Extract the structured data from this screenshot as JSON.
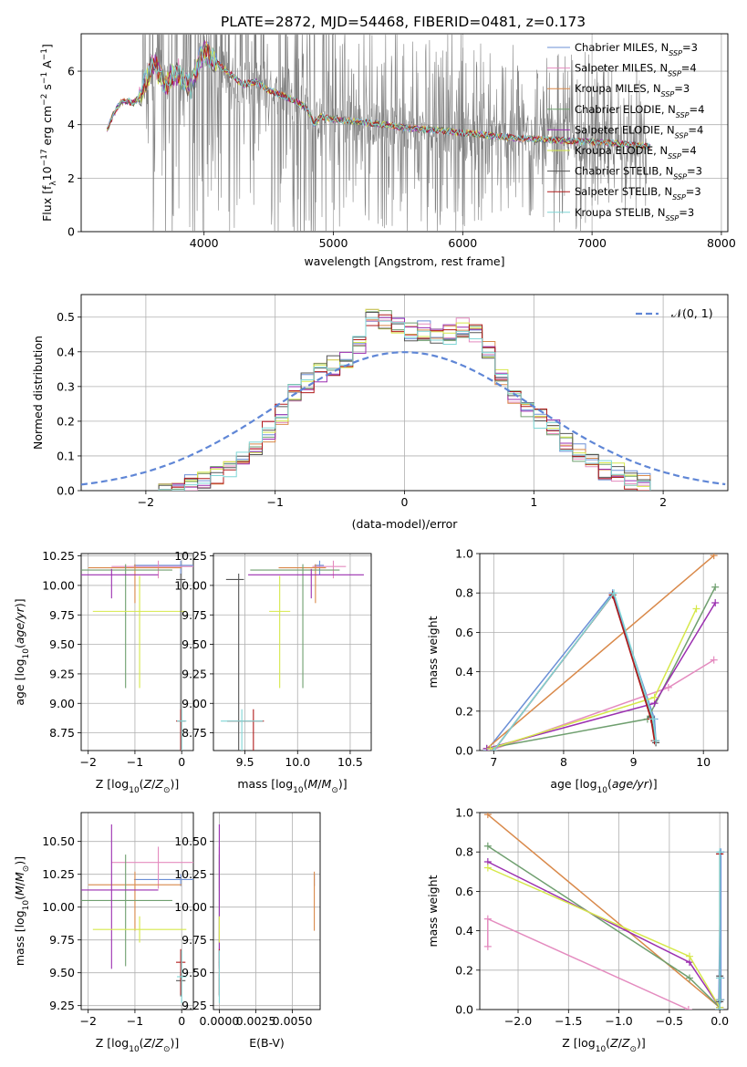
{
  "figure_title": "PLATE=2872, MJD=54468, FIBERID=0481, z=0.173",
  "colors": {
    "Chabrier MILES": "#6b8fd6",
    "Salpeter MILES": "#e48bbf",
    "Kroupa MILES": "#d9894a",
    "Chabrier ELODIE": "#6f9f6f",
    "Salpeter ELODIE": "#9b2fb0",
    "Kroupa ELODIE": "#d6e84a",
    "Chabrier STELIB": "#555555",
    "Salpeter STELIB": "#b01a1a",
    "Kroupa STELIB": "#7fd6d6",
    "data": "#808080",
    "gauss": "#5f86d6"
  },
  "chart_data": [
    {
      "id": "spectrum",
      "type": "line",
      "title": "PLATE=2872, MJD=54468, FIBERID=0481, z=0.173",
      "xlabel": "wavelength [Angstrom, rest frame]",
      "ylabel": "Flux [f_λ 10^-17 erg cm^-2 s^-1 A^-1]",
      "xlim": [
        3050,
        8050
      ],
      "ylim": [
        0,
        7.4
      ],
      "xticks": [
        4000,
        5000,
        6000,
        7000,
        8000
      ],
      "yticks": [
        0,
        2,
        4,
        6
      ],
      "legend_position": "top-right",
      "legend": [
        {
          "model": "Chabrier MILES",
          "label": "Chabrier MILES, N",
          "sub": "SSP",
          "tail": "=3"
        },
        {
          "model": "Salpeter MILES",
          "label": "Salpeter MILES, N",
          "sub": "SSP",
          "tail": "=4"
        },
        {
          "model": "Kroupa MILES",
          "label": "Kroupa MILES, N",
          "sub": "SSP",
          "tail": "=3"
        },
        {
          "model": "Chabrier ELODIE",
          "label": "Chabrier ELODIE, N",
          "sub": "SSP",
          "tail": "=4"
        },
        {
          "model": "Salpeter ELODIE",
          "label": "Salpeter ELODIE, N",
          "sub": "SSP",
          "tail": "=4"
        },
        {
          "model": "Kroupa ELODIE",
          "label": "Kroupa ELODIE, N",
          "sub": "SSP",
          "tail": "=4"
        },
        {
          "model": "Chabrier STELIB",
          "label": "Chabrier STELIB, N",
          "sub": "SSP",
          "tail": "=3"
        },
        {
          "model": "Salpeter STELIB",
          "label": "Salpeter STELIB, N",
          "sub": "SSP",
          "tail": "=3"
        },
        {
          "model": "Kroupa STELIB",
          "label": "Kroupa STELIB, N",
          "sub": "SSP",
          "tail": "=3"
        }
      ],
      "data_range": [
        3520,
        7420
      ],
      "model_continuum": {
        "x": [
          3250,
          3300,
          3350,
          3400,
          3450,
          3500,
          3550,
          3600,
          3650,
          3700,
          3750,
          3800,
          3850,
          3900,
          3950,
          4000,
          4100,
          4200,
          4300,
          4400,
          4500,
          4600,
          4700,
          4800,
          4850,
          4900,
          5000,
          5200,
          5400,
          5600,
          5800,
          6000,
          6200,
          6400,
          6600,
          6800,
          7000,
          7200,
          7400,
          7500
        ],
        "y": [
          3.8,
          4.4,
          4.8,
          4.9,
          4.8,
          5.0,
          5.6,
          6.3,
          6.0,
          5.4,
          5.8,
          6.0,
          5.6,
          5.4,
          6.2,
          6.8,
          6.3,
          5.9,
          5.5,
          5.6,
          5.3,
          5.1,
          4.9,
          4.6,
          4.0,
          4.3,
          4.2,
          4.1,
          4.0,
          3.85,
          3.8,
          3.7,
          3.6,
          3.5,
          3.45,
          3.4,
          3.35,
          3.3,
          3.2,
          3.15
        ]
      }
    },
    {
      "id": "residuals",
      "type": "step",
      "xlabel": "(data-model)/error",
      "ylabel": "Normed distribution",
      "xlim": [
        -2.5,
        2.5
      ],
      "ylim": [
        0,
        0.565
      ],
      "xticks": [
        -2,
        -1,
        0,
        1,
        2
      ],
      "yticks": [
        0.0,
        0.1,
        0.2,
        0.3,
        0.4,
        0.5
      ],
      "gauss_label": "𝒩(0, 1)",
      "bin_width": 0.1,
      "bin_start": -1.9,
      "base": [
        0.0,
        0.01,
        0.02,
        0.03,
        0.04,
        0.06,
        0.09,
        0.13,
        0.17,
        0.22,
        0.28,
        0.31,
        0.34,
        0.36,
        0.38,
        0.42,
        0.5,
        0.49,
        0.47,
        0.46,
        0.46,
        0.44,
        0.45,
        0.47,
        0.45,
        0.41,
        0.33,
        0.27,
        0.24,
        0.21,
        0.19,
        0.14,
        0.11,
        0.09,
        0.06,
        0.05,
        0.03,
        0.02
      ]
    },
    {
      "id": "age_vs_Z",
      "type": "errorbar",
      "xlabel": "Z [log10(Z/Z☉)]",
      "ylabel": "age [log10(age/yr)]",
      "xlim": [
        -2.15,
        0.25
      ],
      "ylim": [
        8.6,
        10.27
      ],
      "xticks": [
        -2,
        -1,
        0
      ],
      "yticks": [
        8.75,
        9.0,
        9.25,
        9.5,
        9.75,
        10.0,
        10.25
      ]
    },
    {
      "id": "age_vs_mass",
      "type": "errorbar",
      "xlabel": "mass [log10(M/M☉)]",
      "ylabel": "",
      "xlim": [
        9.2,
        10.7
      ],
      "ylim": [
        8.6,
        10.27
      ],
      "xticks": [
        9.5,
        10.0,
        10.5
      ],
      "yticks": [
        8.75,
        9.0,
        9.25,
        9.5,
        9.75,
        10.0,
        10.25
      ]
    },
    {
      "id": "weight_vs_age",
      "type": "line",
      "xlabel": "age [log10(age/yr)]",
      "ylabel": "mass weight",
      "xlim": [
        6.8,
        10.35
      ],
      "ylim": [
        0,
        1
      ],
      "xticks": [
        7,
        8,
        9,
        10
      ],
      "yticks": [
        0.0,
        0.2,
        0.4,
        0.6,
        0.8,
        1.0
      ]
    },
    {
      "id": "mass_vs_Z",
      "type": "errorbar",
      "xlabel": "Z [log10(Z/Z☉)]",
      "ylabel": "mass [log10(M/M☉)]",
      "xlim": [
        -2.15,
        0.25
      ],
      "ylim": [
        9.22,
        10.72
      ],
      "xticks": [
        -2,
        -1,
        0
      ],
      "yticks": [
        9.25,
        9.5,
        9.75,
        10.0,
        10.25,
        10.5
      ]
    },
    {
      "id": "mass_vs_ebv",
      "type": "errorbar",
      "xlabel": "E(B-V)",
      "ylabel": "",
      "xlim": [
        -0.0004,
        0.0069
      ],
      "ylim": [
        9.22,
        10.72
      ],
      "xticks": [
        0.0,
        0.0025,
        0.005
      ],
      "xticklabels": [
        "0.0000",
        "0.0025",
        "0.0050"
      ],
      "yticks": [
        9.25,
        9.5,
        9.75,
        10.0,
        10.25,
        10.5
      ]
    },
    {
      "id": "weight_vs_Z",
      "type": "line",
      "xlabel": "Z [log10(Z/Z☉)]",
      "ylabel": "mass weight",
      "xlim": [
        -2.38,
        0.08
      ],
      "ylim": [
        0,
        1
      ],
      "xticks": [
        -2.0,
        -1.5,
        -1.0,
        -0.5,
        0.0
      ],
      "yticks": [
        0.0,
        0.2,
        0.4,
        0.6,
        0.8,
        1.0
      ]
    }
  ],
  "models": [
    {
      "name": "Chabrier MILES",
      "age": 10.17,
      "age_err": [
        0.08,
        0.04
      ],
      "Z": -0.02,
      "mass": 10.21,
      "mass_err": [
        0.05,
        0.04
      ],
      "ebv": 0.0065,
      "weights": [
        [
          6.9,
          0.0,
          -0.01
        ],
        [
          8.7,
          0.8,
          0.01
        ],
        [
          9.3,
          0.16,
          0.01
        ],
        [
          9.32,
          0.05,
          0.01
        ]
      ]
    },
    {
      "name": "Salpeter MILES",
      "age": 10.16,
      "age_err": [
        0.1,
        0.05
      ],
      "Z": -0.5,
      "mass": 10.34,
      "mass_err": [
        0.2,
        0.12
      ],
      "ebv": 0.0,
      "weights": [
        [
          6.95,
          0.0,
          -0.31
        ],
        [
          9.5,
          0.32,
          -2.3
        ],
        [
          10.15,
          0.46,
          -2.3
        ]
      ]
    },
    {
      "name": "Kroupa MILES",
      "age": 10.15,
      "age_err": [
        0.3,
        0.03
      ],
      "Z": -1.0,
      "mass": 10.17,
      "mass_err": [
        0.35,
        0.1
      ],
      "ebv": 0.0065,
      "weights": [
        [
          6.9,
          0.01,
          0.0
        ],
        [
          10.15,
          0.99,
          -2.3
        ]
      ]
    },
    {
      "name": "Chabrier ELODIE",
      "age": 10.13,
      "age_err": [
        1.0,
        0.05
      ],
      "Z": -1.2,
      "mass": 10.05,
      "mass_err": [
        0.5,
        0.35
      ],
      "ebv": 0.0,
      "weights": [
        [
          6.9,
          0.01,
          0.0
        ],
        [
          9.2,
          0.16,
          -0.3
        ],
        [
          10.17,
          0.83,
          -2.3
        ]
      ]
    },
    {
      "name": "Salpeter ELODIE",
      "age": 10.09,
      "age_err": [
        0.2,
        0.05
      ],
      "Z": -1.5,
      "mass": 10.13,
      "mass_err": [
        0.6,
        0.5
      ],
      "ebv": 0.0,
      "weights": [
        [
          6.9,
          0.01,
          0.0
        ],
        [
          9.3,
          0.24,
          -0.3
        ],
        [
          10.17,
          0.75,
          -2.3
        ]
      ]
    },
    {
      "name": "Kroupa ELODIE",
      "age": 9.78,
      "age_err": [
        0.65,
        0.3
      ],
      "Z": -0.9,
      "mass": 9.83,
      "mass_err": [
        0.1,
        0.1
      ],
      "ebv": 0.0,
      "weights": [
        [
          6.95,
          0.01,
          0.0
        ],
        [
          9.3,
          0.27,
          -0.3
        ],
        [
          9.9,
          0.72,
          -2.3
        ]
      ]
    },
    {
      "name": "Chabrier STELIB",
      "age": 10.05,
      "age_err": [
        1.45,
        0.05
      ],
      "Z": -0.02,
      "mass": 9.44,
      "mass_err": [
        0.12,
        0.05
      ],
      "ebv": 0.0,
      "weights": [
        [
          7.0,
          0.0,
          0.0
        ],
        [
          8.7,
          0.79,
          0.0
        ],
        [
          9.25,
          0.17,
          0.0
        ],
        [
          9.32,
          0.04,
          0.0
        ]
      ]
    },
    {
      "name": "Salpeter STELIB",
      "age": 8.85,
      "age_err": [
        0.3,
        0.1
      ],
      "Z": -0.02,
      "mass": 9.58,
      "mass_err": [
        0.25,
        0.1
      ],
      "ebv": 0.0,
      "weights": [
        [
          7.0,
          0.0,
          0.0
        ],
        [
          8.7,
          0.79,
          0.0
        ],
        [
          9.25,
          0.16,
          0.0
        ],
        [
          9.3,
          0.05,
          0.0
        ]
      ]
    },
    {
      "name": "Kroupa STELIB",
      "age": 8.85,
      "age_err": [
        0.25,
        0.1
      ],
      "Z": 0.0,
      "mass": 9.47,
      "mass_err": [
        0.2,
        0.2
      ],
      "ebv": 0.0,
      "weights": [
        [
          7.0,
          0.0,
          0.0
        ],
        [
          8.72,
          0.8,
          0.0
        ],
        [
          9.28,
          0.16,
          0.0
        ],
        [
          9.32,
          0.05,
          0.0
        ]
      ]
    }
  ]
}
